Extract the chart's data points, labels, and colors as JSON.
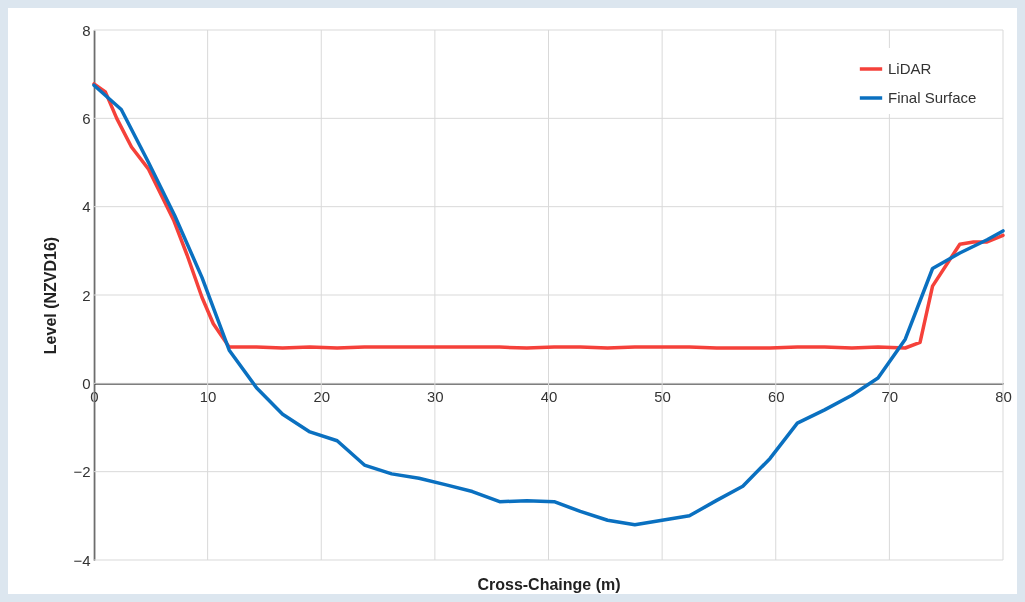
{
  "chart_data": {
    "type": "line",
    "xlabel": "Cross-Chainge (m)",
    "ylabel": "Level (NZVD16)",
    "xlim": [
      0,
      80
    ],
    "xticks": [
      0,
      10,
      20,
      30,
      40,
      50,
      60,
      70,
      80
    ],
    "ylim": [
      -4,
      8
    ],
    "yticks": [
      -4,
      -2,
      0,
      2,
      4,
      6,
      8
    ],
    "grid": true,
    "legend": "top right",
    "line_style": "solid",
    "series": [
      {
        "name": "LiDAR",
        "color": "#f5413a",
        "x": [
          0,
          1,
          2,
          3.3,
          4.8,
          7,
          8.2,
          9.5,
          10.5,
          11.9,
          14.3,
          16.6,
          19,
          21.4,
          23.8,
          26.2,
          28.6,
          31,
          33.3,
          35.7,
          38.1,
          40.5,
          42.8,
          45.2,
          47.6,
          50,
          52.4,
          54.8,
          57.1,
          59.5,
          61.9,
          64.3,
          66.7,
          69,
          71.4,
          72.7,
          73.8,
          76.2,
          77.4,
          78.6,
          80
        ],
        "values": [
          6.78,
          6.6,
          6.0,
          5.35,
          4.85,
          3.7,
          2.9,
          1.95,
          1.35,
          0.82,
          0.82,
          0.8,
          0.82,
          0.8,
          0.82,
          0.82,
          0.82,
          0.82,
          0.82,
          0.82,
          0.8,
          0.82,
          0.82,
          0.8,
          0.82,
          0.82,
          0.82,
          0.8,
          0.8,
          0.8,
          0.82,
          0.82,
          0.8,
          0.82,
          0.8,
          0.93,
          2.2,
          3.15,
          3.2,
          3.2,
          3.35
        ]
      },
      {
        "name": "Final Surface",
        "color": "#0a70c0",
        "x": [
          0,
          2.4,
          4.8,
          7.1,
          9.5,
          11.9,
          14.3,
          16.6,
          19,
          21.4,
          23.8,
          26.2,
          28.6,
          31,
          33.3,
          35.7,
          38.1,
          40.5,
          42.8,
          45.2,
          47.6,
          50,
          52.4,
          54.8,
          57.1,
          59.5,
          61.9,
          64.3,
          66.7,
          69,
          71.4,
          73.8,
          76.2,
          78.6,
          80
        ],
        "values": [
          6.75,
          6.2,
          5.0,
          3.8,
          2.4,
          0.75,
          -0.1,
          -0.7,
          -1.1,
          -1.3,
          -1.85,
          -2.05,
          -2.15,
          -2.3,
          -2.45,
          -2.68,
          -2.66,
          -2.68,
          -2.9,
          -3.1,
          -3.2,
          -3.1,
          -3.0,
          -2.65,
          -2.33,
          -1.7,
          -0.9,
          -0.6,
          -0.27,
          0.12,
          1.0,
          2.6,
          2.95,
          3.25,
          3.45
        ]
      }
    ]
  }
}
